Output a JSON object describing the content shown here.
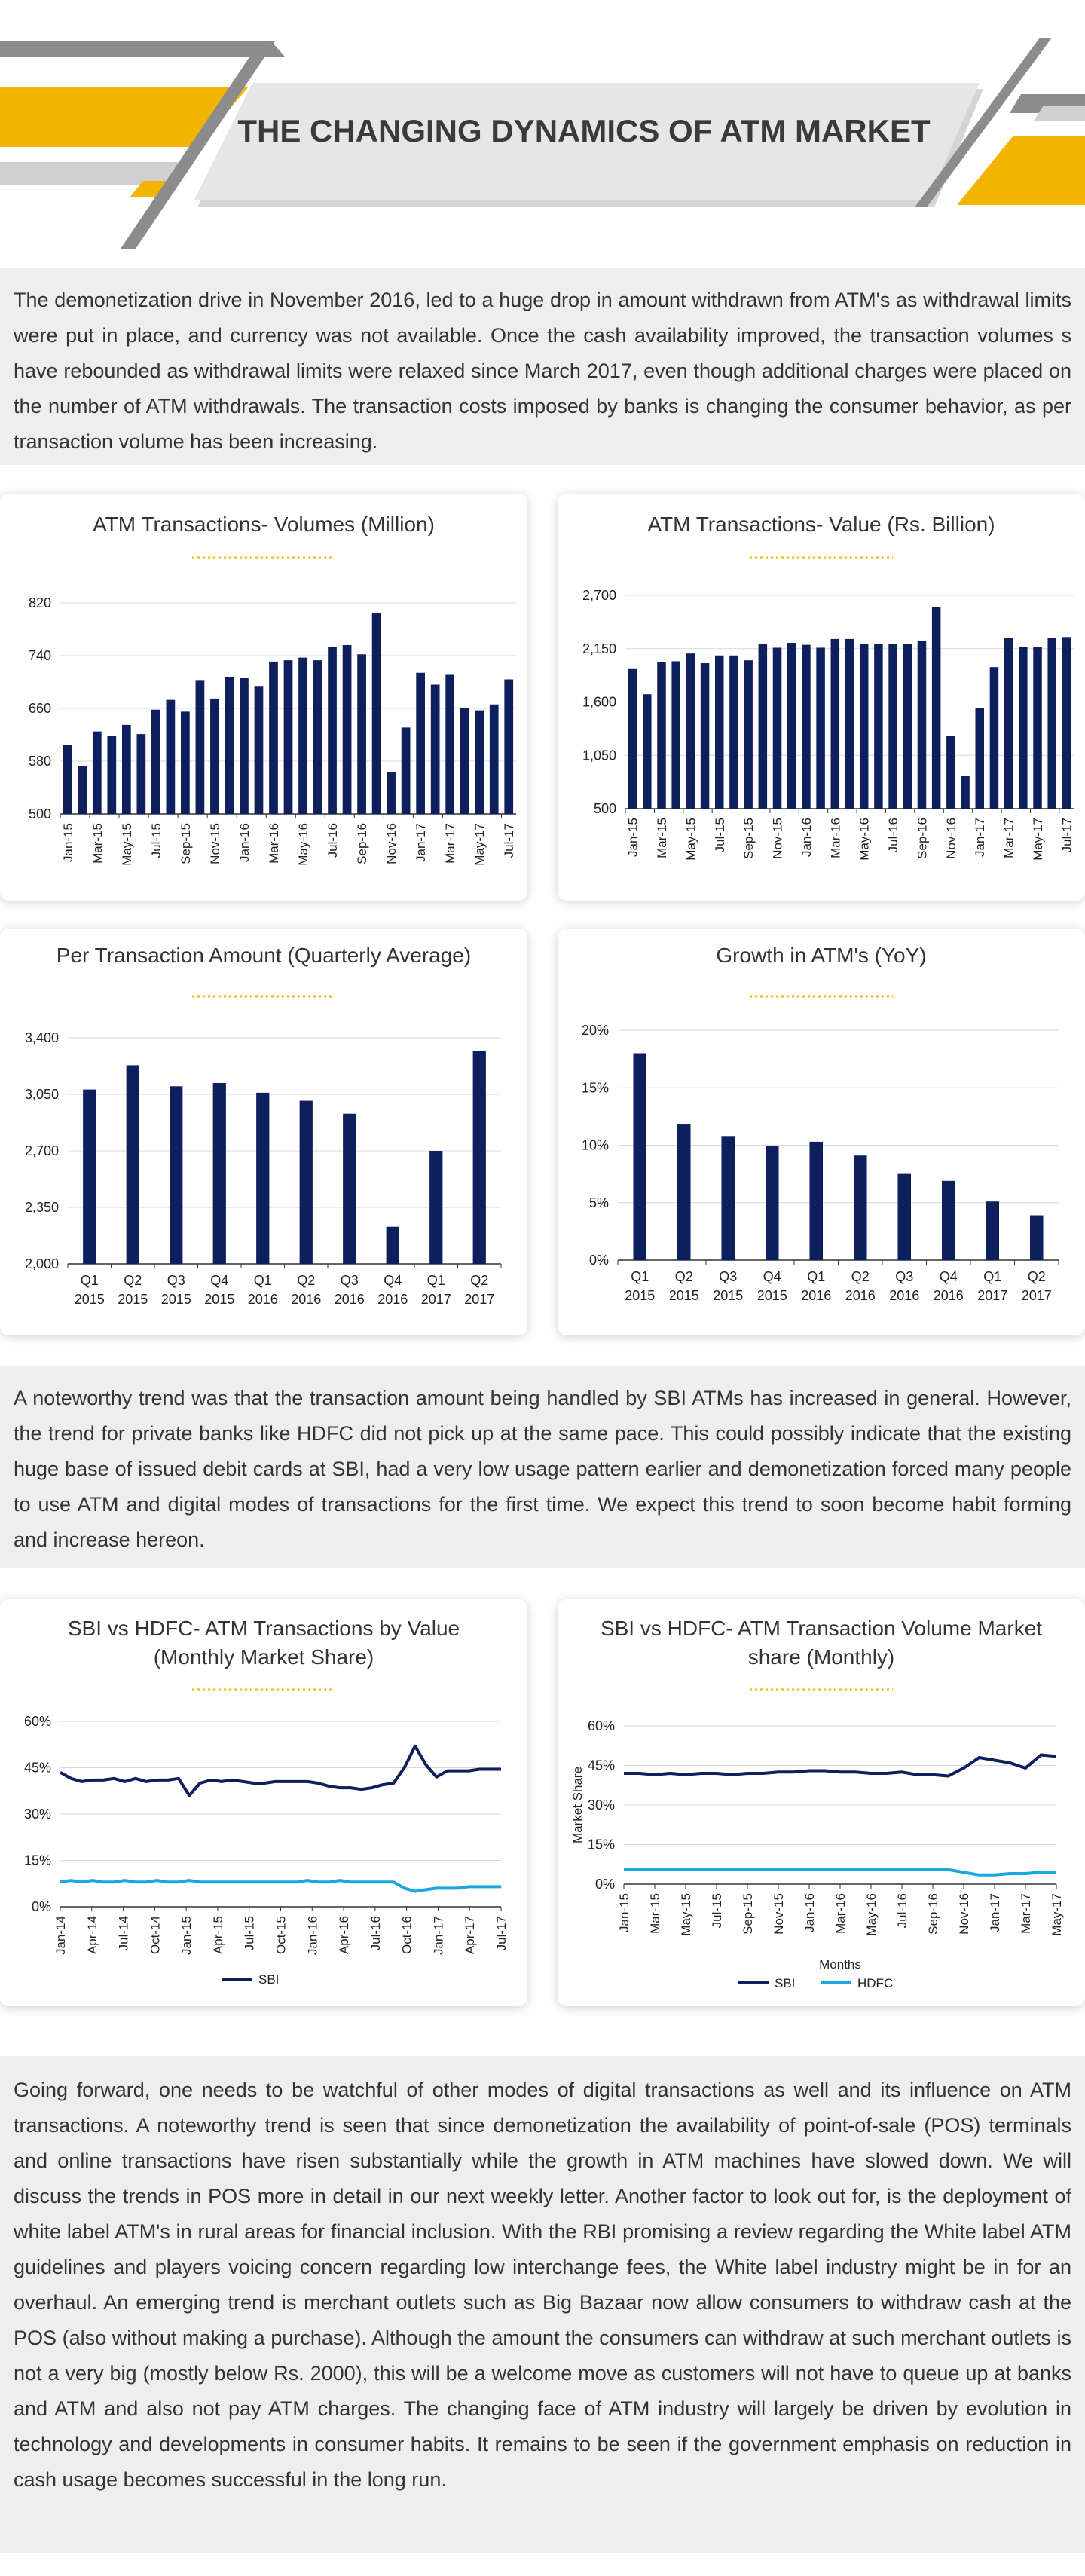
{
  "header": {
    "title": "THE CHANGING DYNAMICS OF ATM MARKET"
  },
  "colors": {
    "navy": "#0d1f5c",
    "cyan": "#1aa7e0",
    "gold": "#f2b400",
    "gray": "#8c8c8c"
  },
  "paragraphs": {
    "p1": "The demonetization drive in November 2016, led to a huge drop in amount withdrawn from ATM's as withdrawal limits were put in place, and currency was not available. Once the cash availability improved, the transaction volumes s have rebounded as withdrawal limits were relaxed since March 2017, even though additional charges were placed on the number of ATM withdrawals. The transaction costs imposed by banks is changing the consumer behavior, as per transaction volume has been increasing.",
    "p2": "A noteworthy trend was that the transaction amount being handled by SBI ATMs has increased in general. However, the trend for private banks like HDFC did not pick up at the same pace. This could possibly indicate that the existing huge base of issued debit cards at SBI, had a very low usage pattern earlier and demonetization forced many people to use ATM and digital modes of transactions for the first time. We expect this trend to soon become habit forming and increase hereon.",
    "p3": "Going forward, one needs to be watchful of other modes of digital transactions as well and its influence on ATM transactions. A noteworthy trend is seen that since demonetization the availability of point-of-sale (POS) terminals and online transactions have risen substantially while the growth in ATM machines have slowed down. We will discuss the trends in POS more in detail in our next weekly letter. Another factor to look out for, is the deployment of white label ATM's in rural areas for financial inclusion. With the RBI promising a review regarding the White label ATM guidelines and players voicing concern regarding low interchange fees, the White label industry might be in for an overhaul. An emerging trend is merchant outlets such as Big Bazaar now allow consumers to withdraw cash at the POS (also without making a purchase). Although the amount the consumers can withdraw at such merchant outlets is not a very big (mostly below Rs. 2000), this will be a welcome move as customers will not have to queue up at banks and ATM and also not pay ATM charges. The changing face of ATM industry will largely be driven by evolution in technology and developments in consumer habits. It remains to be seen if the government emphasis on reduction in cash usage becomes successful in the long run."
  },
  "chart_data": [
    {
      "id": "vol",
      "type": "bar",
      "title": "ATM Transactions- Volumes (Million)",
      "ylim": [
        500,
        820
      ],
      "yticks": [
        500,
        580,
        660,
        740,
        820
      ],
      "ytick_labels": [
        "500",
        "580",
        "660",
        "740",
        "820"
      ],
      "xtick_labels": [
        "Jan-15",
        "Mar-15",
        "May-15",
        "Jul-15",
        "Sep-15",
        "Nov-15",
        "Jan-16",
        "Mar-16",
        "May-16",
        "Jul-16",
        "Sep-16",
        "Nov-16",
        "Jan-17",
        "Mar-17",
        "May-17",
        "Jul-17"
      ],
      "values": [
        604,
        573,
        625,
        618,
        635,
        621,
        658,
        673,
        655,
        703,
        675,
        708,
        706,
        694,
        731,
        733,
        737,
        733,
        753,
        756,
        742,
        805,
        563,
        631,
        714,
        696,
        712,
        660,
        657,
        666,
        704
      ],
      "grid": true
    },
    {
      "id": "val",
      "type": "bar",
      "title": "ATM Transactions- Value (Rs. Billion)",
      "ylim": [
        500,
        2700
      ],
      "yticks": [
        500,
        1050,
        1600,
        2150,
        2700
      ],
      "ytick_labels": [
        "500",
        "1,050",
        "1,600",
        "2,150",
        "2,700"
      ],
      "xtick_labels": [
        "Jan-15",
        "Mar-15",
        "May-15",
        "Jul-15",
        "Sep-15",
        "Nov-15",
        "Jan-16",
        "Mar-16",
        "May-16",
        "Jul-16",
        "Sep-16",
        "Nov-16",
        "Jan-17",
        "Mar-17",
        "May-17",
        "Jul-17"
      ],
      "values": [
        1940,
        1680,
        2010,
        2020,
        2100,
        2000,
        2080,
        2080,
        2030,
        2200,
        2160,
        2210,
        2190,
        2160,
        2250,
        2250,
        2200,
        2200,
        2200,
        2200,
        2230,
        2580,
        1250,
        840,
        1540,
        1960,
        2260,
        2170,
        2170,
        2260,
        2270
      ],
      "grid": true
    },
    {
      "id": "pta",
      "type": "bar",
      "title": "Per Transaction Amount (Quarterly Average)",
      "ylim": [
        2000,
        3400
      ],
      "yticks": [
        2000,
        2350,
        2700,
        3050,
        3400
      ],
      "ytick_labels": [
        "2,000",
        "2,350",
        "2,700",
        "3,050",
        "3,400"
      ],
      "categories": [
        [
          "Q1",
          "2015"
        ],
        [
          "Q2",
          "2015"
        ],
        [
          "Q3",
          "2015"
        ],
        [
          "Q4",
          "2015"
        ],
        [
          "Q1",
          "2016"
        ],
        [
          "Q2",
          "2016"
        ],
        [
          "Q3",
          "2016"
        ],
        [
          "Q4",
          "2016"
        ],
        [
          "Q1",
          "2017"
        ],
        [
          "Q2",
          "2017"
        ]
      ],
      "values": [
        3080,
        3230,
        3100,
        3120,
        3060,
        3010,
        2930,
        2230,
        2700,
        3320
      ],
      "grid": true
    },
    {
      "id": "growth",
      "type": "bar",
      "title": "Growth in ATM's (YoY)",
      "ylim": [
        0,
        20
      ],
      "yticks": [
        0,
        5,
        10,
        15,
        20
      ],
      "ytick_labels": [
        "0%",
        "5%",
        "10%",
        "15%",
        "20%"
      ],
      "categories": [
        [
          "Q1",
          "2015"
        ],
        [
          "Q2",
          "2015"
        ],
        [
          "Q3",
          "2015"
        ],
        [
          "Q4",
          "2015"
        ],
        [
          "Q1",
          "2016"
        ],
        [
          "Q2",
          "2016"
        ],
        [
          "Q3",
          "2016"
        ],
        [
          "Q4",
          "2016"
        ],
        [
          "Q1",
          "2017"
        ],
        [
          "Q2",
          "2017"
        ]
      ],
      "values": [
        18.0,
        11.8,
        10.8,
        9.9,
        10.3,
        9.1,
        7.5,
        6.9,
        5.1,
        3.9
      ],
      "grid": true
    },
    {
      "id": "share_val",
      "type": "line",
      "title": "SBI vs HDFC- ATM Transactions by Value (Monthly Market Share)",
      "title_lines": [
        "SBI vs HDFC- ATM Transactions by Value",
        "(Monthly Market Share)"
      ],
      "ylim": [
        0,
        60
      ],
      "yticks": [
        0,
        15,
        30,
        45,
        60
      ],
      "ytick_labels": [
        "0%",
        "15%",
        "30%",
        "45%",
        "60%"
      ],
      "xtick_labels": [
        "Jan-14",
        "Apr-14",
        "Jul-14",
        "Oct-14",
        "Jan-15",
        "Apr-15",
        "Jul-15",
        "Oct-15",
        "Jan-16",
        "Apr-16",
        "Jul-16",
        "Oct-16",
        "Jan-17",
        "Apr-17",
        "Jul-17"
      ],
      "series": [
        {
          "name": "SBI",
          "color": "#0d1f5c",
          "values": [
            43.5,
            41.5,
            40.5,
            41,
            41,
            41.5,
            40.5,
            41.5,
            40.5,
            41,
            41,
            41.5,
            36,
            40,
            41,
            40.5,
            41,
            40.5,
            40,
            40,
            40.5,
            40.5,
            40.5,
            40.5,
            40,
            39,
            38.5,
            38.5,
            38,
            38.5,
            39.5,
            40,
            45,
            52,
            46,
            42,
            44,
            44,
            44,
            44.5,
            44.5,
            44.5
          ]
        },
        {
          "series_color_note": "",
          "color": "#1aa7e0",
          "values": [
            8,
            8.5,
            8,
            8.5,
            8,
            8,
            8.5,
            8,
            8,
            8.5,
            8,
            8,
            8.5,
            8,
            8,
            8,
            8,
            8,
            8,
            8,
            8,
            8,
            8,
            8.5,
            8,
            8,
            8.5,
            8,
            8,
            8,
            8,
            8,
            6,
            5,
            5.5,
            6,
            6,
            6,
            6.5,
            6.5,
            6.5,
            6.5
          ]
        }
      ],
      "legend": [
        "SBI"
      ],
      "legend_position": "bottom",
      "grid": true
    },
    {
      "id": "share_vol",
      "type": "line",
      "title": "SBI vs HDFC- ATM Transaction Volume Market share (Monthly)",
      "title_lines": [
        "SBI vs HDFC- ATM Transaction Volume Market",
        "share (Monthly)"
      ],
      "xlabel": "Months",
      "ylabel": "Market Share",
      "ylim": [
        0,
        60
      ],
      "yticks": [
        0,
        15,
        30,
        45,
        60
      ],
      "ytick_labels": [
        "0%",
        "15%",
        "30%",
        "45%",
        "60%"
      ],
      "xtick_labels": [
        "Jan-15",
        "Mar-15",
        "May-15",
        "Jul-15",
        "Sep-15",
        "Nov-15",
        "Jan-16",
        "Mar-16",
        "May-16",
        "Jul-16",
        "Sep-16",
        "Nov-16",
        "Jan-17",
        "Mar-17",
        "May-17"
      ],
      "series": [
        {
          "name": "SBI",
          "color": "#0d1f5c",
          "values": [
            42,
            42,
            41.5,
            42,
            41.5,
            42,
            42,
            41.5,
            42,
            42,
            42.5,
            42.5,
            43,
            43,
            42.5,
            42.5,
            42,
            42,
            42.5,
            41.5,
            41.5,
            41,
            44,
            48,
            47,
            46,
            44,
            49,
            48.5
          ]
        },
        {
          "name": "HDFC",
          "color": "#1aa7e0",
          "values": [
            5.5,
            5.5,
            5.5,
            5.5,
            5.5,
            5.5,
            5.5,
            5.5,
            5.5,
            5.5,
            5.5,
            5.5,
            5.5,
            5.5,
            5.5,
            5.5,
            5.5,
            5.5,
            5.5,
            5.5,
            5.5,
            5.5,
            4.5,
            3.5,
            3.5,
            4,
            4,
            4.5,
            4.5
          ]
        }
      ],
      "legend": [
        "SBI",
        "HDFC"
      ],
      "legend_position": "bottom",
      "grid": true
    }
  ]
}
